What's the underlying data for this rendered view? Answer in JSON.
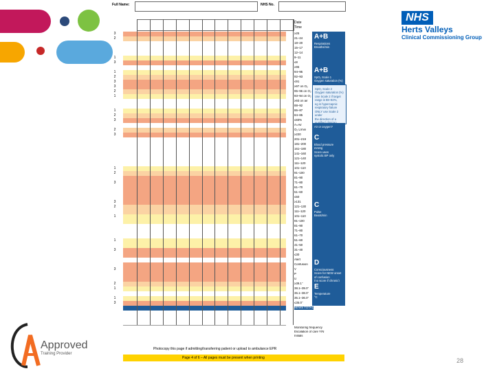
{
  "chart": {
    "header": {
      "full_name_label": "Full Name:",
      "nhs_label": "NHS No.",
      "date_label": "Date",
      "time_label": "Time"
    },
    "rows": [
      {
        "score": "3",
        "range": "≥25",
        "color": "#f4a582"
      },
      {
        "score": "2",
        "range": "21–24",
        "color": "#fbd3a3"
      },
      {
        "score": "",
        "range": "18–20",
        "color": "#ffffff"
      },
      {
        "score": "",
        "range": "15–17",
        "color": "#ffffff"
      },
      {
        "score": "",
        "range": "12–14",
        "color": "#ffffff"
      },
      {
        "score": "1",
        "range": "9–11",
        "color": "#fdf1a8"
      },
      {
        "score": "3",
        "range": "≤8",
        "color": "#f4a582"
      },
      {
        "score": "",
        "range": "≥96",
        "color": "#ffffff"
      },
      {
        "score": "1",
        "range": "94–95",
        "color": "#fdf1a8"
      },
      {
        "score": "2",
        "range": "92–93",
        "color": "#fbd3a3"
      },
      {
        "score": "3",
        "range": "≤91",
        "color": "#f4a582"
      },
      {
        "score": "3",
        "range": "≥97 on O₂",
        "color": "#f4a582"
      },
      {
        "score": "2",
        "range": "95–96 on O₂",
        "color": "#fbd3a3"
      },
      {
        "score": "1",
        "range": "93–94 on O₂",
        "color": "#fdf1a8"
      },
      {
        "score": "",
        "range": "≥93 on air",
        "color": "#ffffff"
      },
      {
        "score": "",
        "range": "88–92",
        "color": "#ffffff"
      },
      {
        "score": "1",
        "range": "86–87",
        "color": "#fdf1a8"
      },
      {
        "score": "2",
        "range": "84–85",
        "color": "#fbd3a3"
      },
      {
        "score": "3",
        "range": "≤83%",
        "color": "#f4a582"
      },
      {
        "score": "",
        "range": "A=Air",
        "color": "#ffffff"
      },
      {
        "score": "2",
        "range": "O₂ L/min",
        "color": "#fbd3a3"
      },
      {
        "score": "3",
        "range": "≥220",
        "color": "#f4a582"
      },
      {
        "score": "",
        "range": "201–219",
        "color": "#ffffff"
      },
      {
        "score": "",
        "range": "181–200",
        "color": "#ffffff"
      },
      {
        "score": "",
        "range": "161–180",
        "color": "#ffffff"
      },
      {
        "score": "",
        "range": "141–160",
        "color": "#ffffff"
      },
      {
        "score": "",
        "range": "121–140",
        "color": "#ffffff"
      },
      {
        "score": "",
        "range": "111–120",
        "color": "#ffffff"
      },
      {
        "score": "1",
        "range": "101–110",
        "color": "#fdf1a8"
      },
      {
        "score": "2",
        "range": "91–100",
        "color": "#fbd3a3"
      },
      {
        "score": "",
        "range": "81–90",
        "color": "#f4a582"
      },
      {
        "score": "3",
        "range": "71–80",
        "color": "#f4a582"
      },
      {
        "score": "",
        "range": "61–70",
        "color": "#f4a582"
      },
      {
        "score": "",
        "range": "51–60",
        "color": "#f4a582"
      },
      {
        "score": "",
        "range": "≤50",
        "color": "#f4a582"
      },
      {
        "score": "3",
        "range": "≥131",
        "color": "#f4a582"
      },
      {
        "score": "2",
        "range": "121–130",
        "color": "#fbd3a3"
      },
      {
        "score": "",
        "range": "111–120",
        "color": "#fbd3a3"
      },
      {
        "score": "1",
        "range": "101–110",
        "color": "#fdf1a8"
      },
      {
        "score": "",
        "range": "91–100",
        "color": "#fdf1a8"
      },
      {
        "score": "",
        "range": "81–90",
        "color": "#ffffff"
      },
      {
        "score": "",
        "range": "71–80",
        "color": "#ffffff"
      },
      {
        "score": "",
        "range": "61–70",
        "color": "#ffffff"
      },
      {
        "score": "1",
        "range": "51–60",
        "color": "#fdf1a8"
      },
      {
        "score": "",
        "range": "41–50",
        "color": "#fdf1a8"
      },
      {
        "score": "3",
        "range": "31–40",
        "color": "#f4a582"
      },
      {
        "score": "",
        "range": "≤30",
        "color": "#f4a582"
      },
      {
        "score": "",
        "range": "Alert",
        "color": "#ffffff"
      },
      {
        "score": "",
        "range": "Confusion",
        "color": "#f4a582"
      },
      {
        "score": "3",
        "range": "V",
        "color": "#f4a582"
      },
      {
        "score": "",
        "range": "P",
        "color": "#f4a582"
      },
      {
        "score": "",
        "range": "U",
        "color": "#f4a582"
      },
      {
        "score": "2",
        "range": "≥39.1°",
        "color": "#fbd3a3"
      },
      {
        "score": "1",
        "range": "38.1–39.0°",
        "color": "#fdf1a8"
      },
      {
        "score": "",
        "range": "36.1–38.0°",
        "color": "#ffffff"
      },
      {
        "score": "1",
        "range": "35.1–36.0°",
        "color": "#fdf1a8"
      },
      {
        "score": "3",
        "range": "≤35.0°",
        "color": "#f4a582"
      },
      {
        "score": "",
        "range": "NEWS TOTAL",
        "color": "#1f5c99"
      },
      {
        "score": "",
        "range": "",
        "color": "#ffffff"
      },
      {
        "score": "",
        "range": "",
        "color": "#ffffff"
      },
      {
        "score": "",
        "range": "",
        "color": "#ffffff"
      }
    ],
    "panels": [
      {
        "big": "A+B",
        "small": "Respirations\nBreaths/min"
      },
      {
        "big": "A+B",
        "small": "SpO₂ Scale 1\nOxygen saturation (%)"
      },
      {
        "big": "",
        "small": "SpO₂ Scale 2\nOxygen saturation (%)\nUse Scale 2 if target\nrange is 88–92%,\neg in hypercapnic\nrespiratory failure\nONLY use Scale 2 under\nthe direction of a\nqualified clinician"
      },
      {
        "big": "",
        "small": "Air or oxygen?"
      },
      {
        "big": "C",
        "small": "Blood pressure\nmmHg\nScore uses\nsystolic BP only"
      },
      {
        "big": "C",
        "small": "Pulse\nBeats/min"
      },
      {
        "big": "D",
        "small": "Consciousness\nScore for NEW onset\nof confusion\n(no score if chronic)"
      },
      {
        "big": "E",
        "small": "Temperature\n°C"
      }
    ],
    "footer_rows": [
      "Monitoring frequency",
      "Escalation of care Y/N",
      "Initials"
    ],
    "footer_note": "Photocopy this page if admitting/transferring patient or upload to ambulance EPR",
    "footer_banner": "Page 4 of 6 – All pages must be present when printing"
  },
  "logo": {
    "nhs": "NHS",
    "org_line1": "Herts Valleys",
    "org_line2": "Clinical Commissioning Group",
    "training_name": "Approved",
    "training_sub": "Training Provider"
  },
  "page_number": "28",
  "colors": {
    "panel_blue": "#1f5c99",
    "nhs_blue": "#005eb8",
    "banner_yellow": "#ffd200",
    "blob_magenta": "#c2185b",
    "blob_orange": "#f7a600",
    "blob_green": "#7dc242",
    "blob_blue": "#5aa9dd",
    "dot_navy": "#2c4a7a"
  }
}
